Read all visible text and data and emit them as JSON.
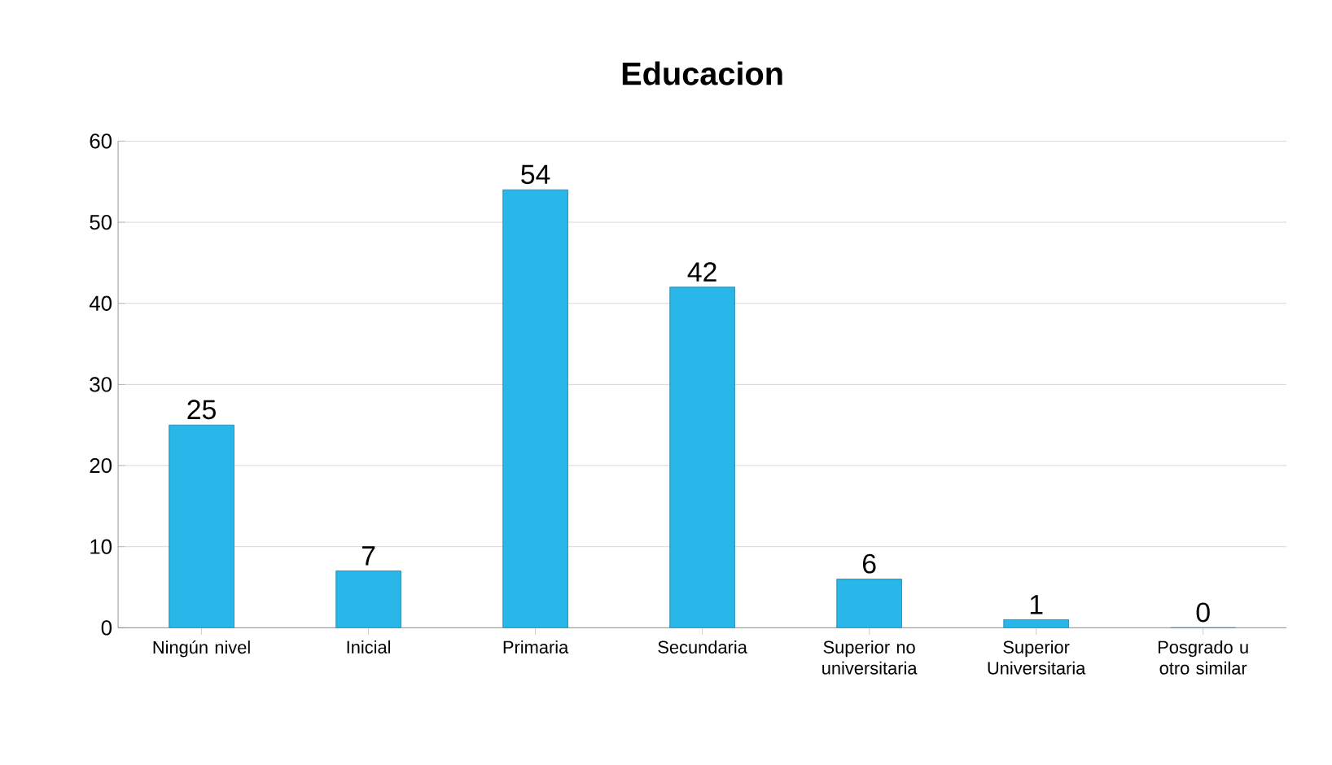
{
  "chart_data": {
    "type": "bar",
    "title": "Educacion",
    "categories": [
      "Ningún nivel",
      "Inicial",
      "Primaria",
      "Secundaria",
      "Superior no universitaria",
      "Superior Universitaria",
      "Posgrado u otro similar"
    ],
    "values": [
      25,
      7,
      54,
      42,
      6,
      1,
      0
    ],
    "color": "#29b6e8",
    "ylim": [
      0,
      60
    ],
    "yticks": [
      0,
      10,
      20,
      30,
      40,
      50,
      60
    ],
    "grid": "y",
    "data_labels": true
  }
}
